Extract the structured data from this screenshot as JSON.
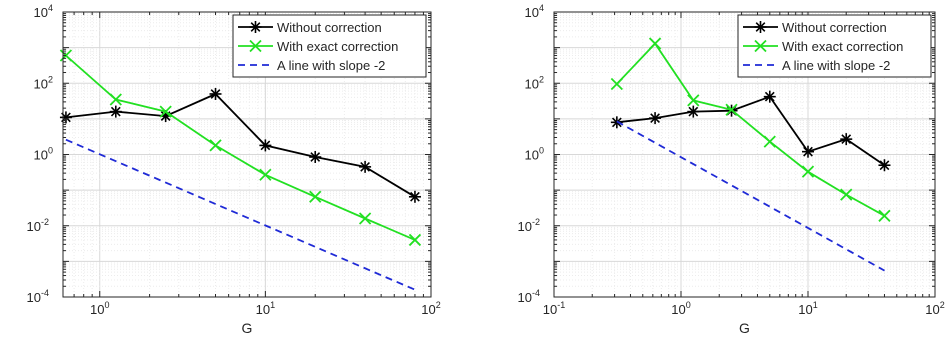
{
  "chart_data": [
    {
      "type": "line",
      "title": "",
      "xlabel": "G",
      "ylabel": "",
      "xscale": "log",
      "yscale": "log",
      "xlim": [
        0.6,
        100
      ],
      "ylim": [
        0.0001,
        10000
      ],
      "grid": true,
      "legend_position": "top-right",
      "x_ticks": [
        {
          "value": 1,
          "base": "10",
          "exp": "0"
        },
        {
          "value": 10,
          "base": "10",
          "exp": "1"
        },
        {
          "value": 100,
          "base": "10",
          "exp": "2"
        }
      ],
      "y_ticks": [
        {
          "value": 0.0001,
          "base": "10",
          "exp": "-4"
        },
        {
          "value": 0.01,
          "base": "10",
          "exp": "-2"
        },
        {
          "value": 1,
          "base": "10",
          "exp": "0"
        },
        {
          "value": 100,
          "base": "10",
          "exp": "2"
        },
        {
          "value": 10000,
          "base": "10",
          "exp": "4"
        }
      ],
      "series": [
        {
          "name": "Without correction",
          "color": "#000000",
          "marker": "asterisk",
          "dashed": false,
          "x": [
            0.625,
            1.25,
            2.5,
            5,
            10,
            20,
            40,
            80
          ],
          "y": [
            11,
            16,
            12,
            50,
            1.8,
            0.85,
            0.45,
            0.065
          ]
        },
        {
          "name": "With exact correction",
          "color": "#22e022",
          "marker": "cross",
          "dashed": false,
          "x": [
            0.625,
            1.25,
            2.5,
            5,
            10,
            20,
            40,
            80
          ],
          "y": [
            600,
            35,
            16,
            1.8,
            0.27,
            0.065,
            0.016,
            0.004
          ]
        },
        {
          "name": "A line with slope -2",
          "color": "#1f2ad6",
          "marker": "none",
          "dashed": true,
          "x": [
            0.625,
            80
          ],
          "y": [
            2.6,
            0.00016
          ]
        }
      ]
    },
    {
      "type": "line",
      "title": "",
      "xlabel": "G",
      "ylabel": "",
      "xscale": "log",
      "yscale": "log",
      "xlim": [
        0.1,
        100
      ],
      "ylim": [
        0.0001,
        10000
      ],
      "grid": true,
      "legend_position": "top-right",
      "x_ticks": [
        {
          "value": 0.1,
          "base": "10",
          "exp": "-1"
        },
        {
          "value": 1,
          "base": "10",
          "exp": "0"
        },
        {
          "value": 10,
          "base": "10",
          "exp": "1"
        },
        {
          "value": 100,
          "base": "10",
          "exp": "2"
        }
      ],
      "y_ticks": [
        {
          "value": 0.0001,
          "base": "10",
          "exp": "-4"
        },
        {
          "value": 0.01,
          "base": "10",
          "exp": "-2"
        },
        {
          "value": 1,
          "base": "10",
          "exp": "0"
        },
        {
          "value": 100,
          "base": "10",
          "exp": "2"
        },
        {
          "value": 10000,
          "base": "10",
          "exp": "4"
        }
      ],
      "series": [
        {
          "name": "Without correction",
          "color": "#000000",
          "marker": "asterisk",
          "dashed": false,
          "x": [
            0.3125,
            0.625,
            1.25,
            2.5,
            5,
            10,
            20,
            40
          ],
          "y": [
            8,
            10.5,
            16,
            17,
            42,
            1.2,
            2.7,
            0.5
          ]
        },
        {
          "name": "With exact correction",
          "color": "#22e022",
          "marker": "cross",
          "dashed": false,
          "x": [
            0.3125,
            0.625,
            1.25,
            2.5,
            5,
            10,
            20,
            40
          ],
          "y": [
            95,
            1300,
            33,
            18,
            2.3,
            0.33,
            0.075,
            0.019
          ]
        },
        {
          "name": "A line with slope -2",
          "color": "#1f2ad6",
          "marker": "none",
          "dashed": true,
          "x": [
            0.3125,
            40
          ],
          "y": [
            8.5,
            0.00055
          ]
        }
      ]
    }
  ]
}
